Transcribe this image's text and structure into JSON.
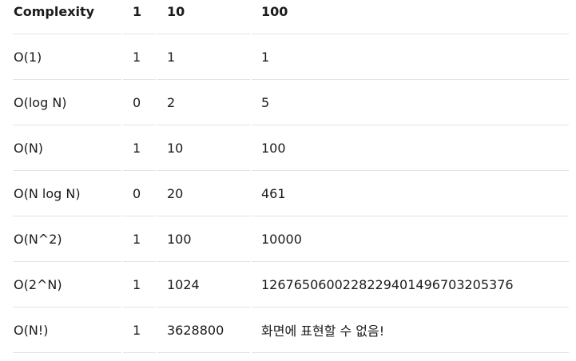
{
  "headers": [
    "Complexity",
    "1",
    "10",
    "100"
  ],
  "rows": [
    [
      "O(1)",
      "1",
      "1",
      "1"
    ],
    [
      "O(log N)",
      "0",
      "2",
      "5"
    ],
    [
      "O(N)",
      "1",
      "10",
      "100"
    ],
    [
      "O(N log N)",
      "0",
      "20",
      "461"
    ],
    [
      "O(N^2)",
      "1",
      "100",
      "10000"
    ],
    [
      "O(2^N)",
      "1",
      "1024",
      "1267650600228229401496703205376"
    ],
    [
      "O(N!)",
      "1",
      "3628800",
      "화면에 표현할 수 없음!"
    ]
  ]
}
